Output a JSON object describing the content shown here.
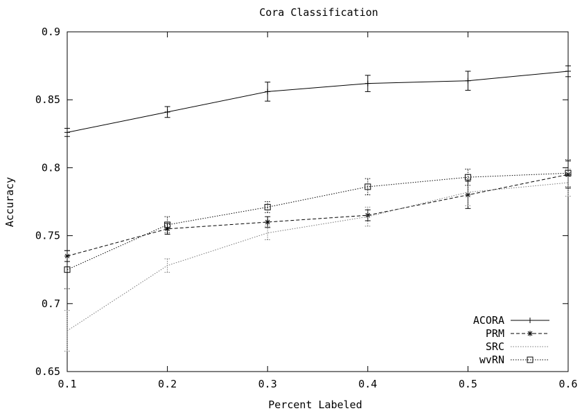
{
  "chart_data": {
    "type": "line",
    "title": "Cora Classification",
    "xlabel": "Percent Labeled",
    "ylabel": "Accuracy",
    "xlim": [
      0.1,
      0.6
    ],
    "ylim": [
      0.65,
      0.9
    ],
    "xticks": [
      "0.1",
      "0.2",
      "0.3",
      "0.4",
      "0.5",
      "0.6"
    ],
    "yticks": [
      "0.65",
      "0.7",
      "0.75",
      "0.8",
      "0.85",
      "0.9"
    ],
    "x": [
      0.1,
      0.2,
      0.3,
      0.4,
      0.5,
      0.6
    ],
    "grid": false,
    "legend_position": "bottom-right",
    "series": [
      {
        "name": "ACORA",
        "marker": "plus",
        "line_style": "solid",
        "color": "#000000",
        "values": [
          0.826,
          0.841,
          0.856,
          0.862,
          0.864,
          0.871
        ],
        "errors": [
          0.003,
          0.004,
          0.007,
          0.006,
          0.007,
          0.004
        ]
      },
      {
        "name": "PRM",
        "marker": "star",
        "line_style": "dashed",
        "color": "#000000",
        "values": [
          0.735,
          0.755,
          0.76,
          0.765,
          0.78,
          0.795
        ],
        "errors": [
          0.004,
          0.004,
          0.004,
          0.004,
          0.01,
          0.01
        ]
      },
      {
        "name": "SRC",
        "marker": "none",
        "line_style": "dotted",
        "color": "#777777",
        "values": [
          0.68,
          0.728,
          0.752,
          0.764,
          0.782,
          0.789
        ],
        "errors": [
          0.015,
          0.005,
          0.005,
          0.007,
          0.01,
          0.01
        ]
      },
      {
        "name": "wvRN",
        "marker": "square",
        "line_style": "dotted",
        "color": "#000000",
        "values": [
          0.725,
          0.758,
          0.771,
          0.786,
          0.793,
          0.796
        ],
        "errors": [
          0.014,
          0.006,
          0.004,
          0.006,
          0.006,
          0.01
        ]
      }
    ]
  }
}
